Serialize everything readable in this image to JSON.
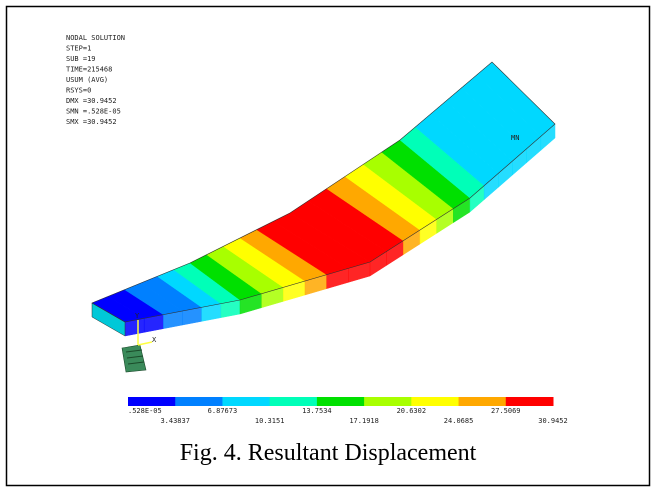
{
  "info": [
    "NODAL SOLUTION",
    "STEP=1",
    "SUB =19",
    "TIME=215468",
    "USUM      (AVG)",
    "RSYS=0",
    "DMX =30.9452",
    "SMN =.528E-05",
    "SMX =30.9452"
  ],
  "markers": {
    "min": "MN",
    "axis_y": "Y",
    "axis_x": "X"
  },
  "legend": {
    "colors": [
      "#0000ff",
      "#0080ff",
      "#00d8ff",
      "#00ffb8",
      "#00e000",
      "#a8ff00",
      "#ffff00",
      "#ffa800",
      "#ff0000"
    ],
    "labels": [
      ".528E-05",
      "3.43837",
      "6.87673",
      "10.3151",
      "13.7534",
      "17.1918",
      "20.6302",
      "24.0685",
      "27.5069",
      "30.9452"
    ]
  },
  "caption": "Fig. 4. Resultant Displacement"
}
